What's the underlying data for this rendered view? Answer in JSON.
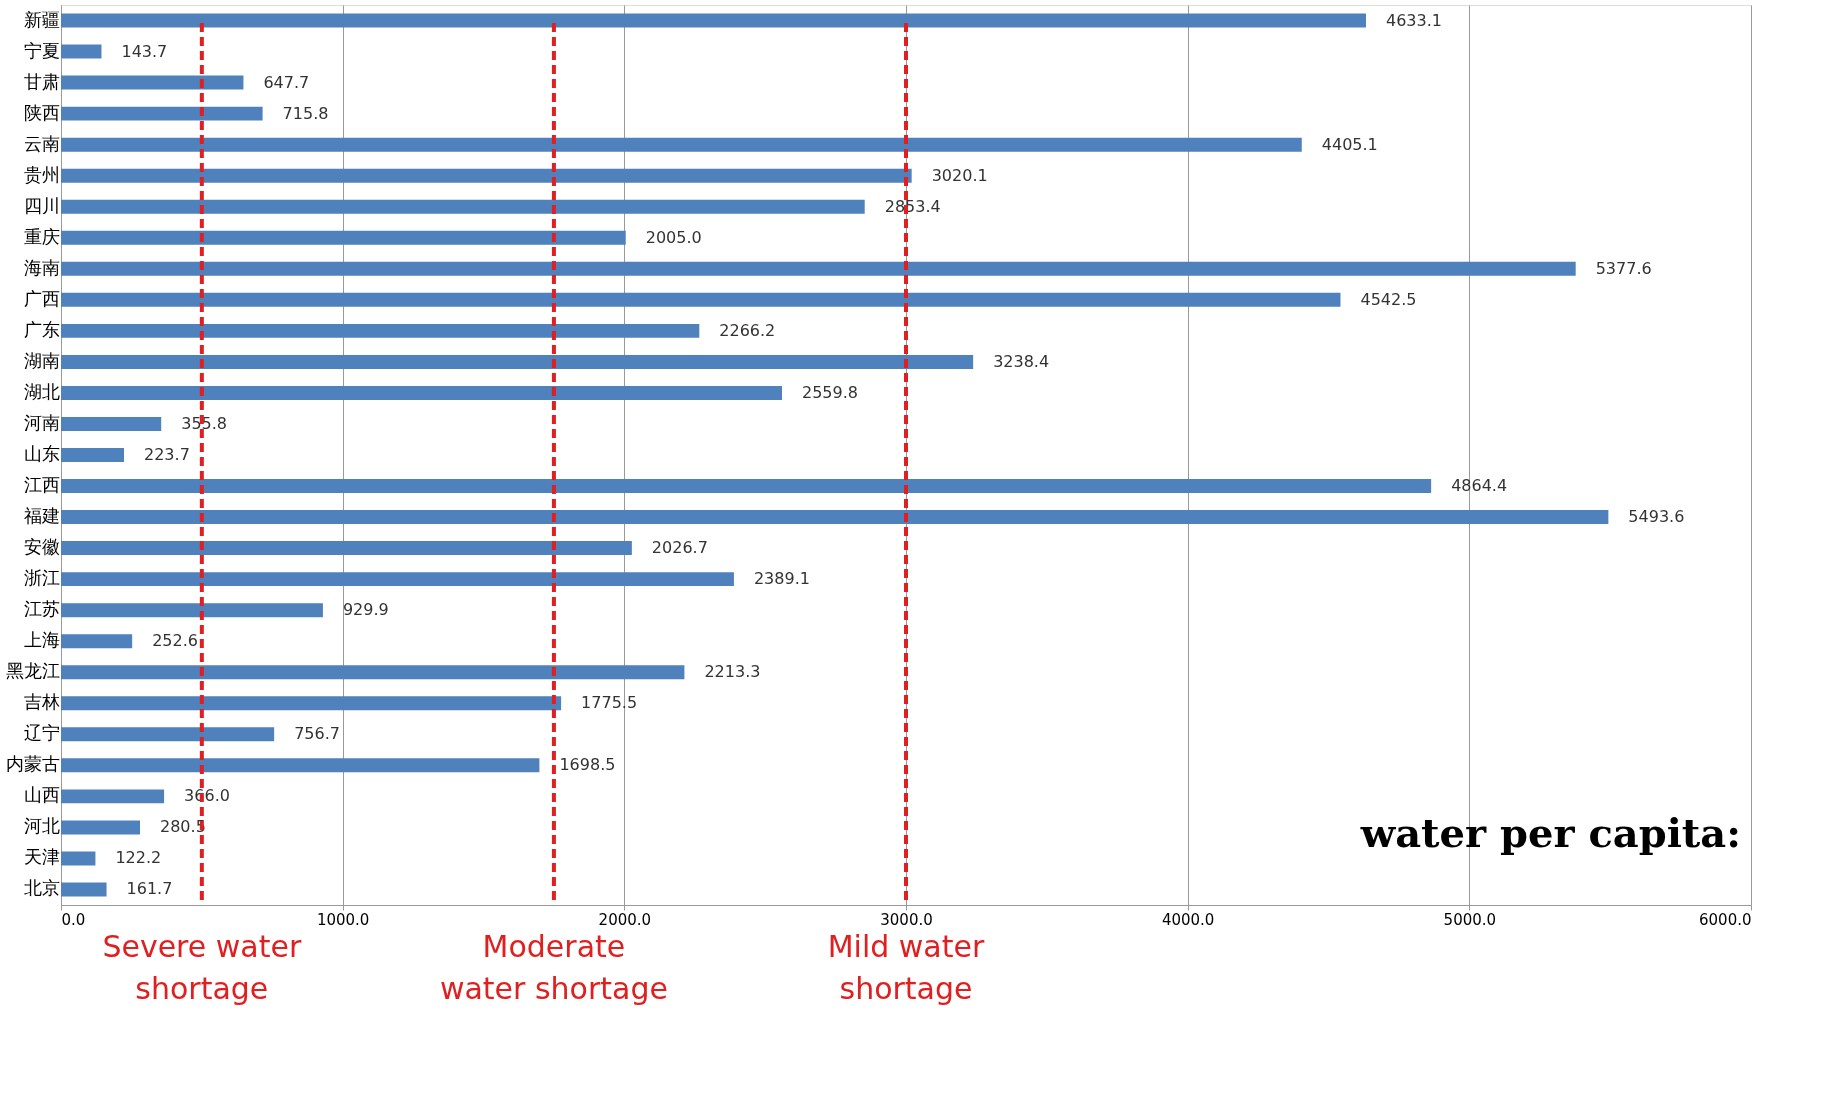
{
  "chart_data": {
    "type": "bar",
    "orientation": "horizontal",
    "categories": [
      "新疆",
      "宁夏",
      "甘肃",
      "陕西",
      "云南",
      "贵州",
      "四川",
      "重庆",
      "海南",
      "广西",
      "广东",
      "湖南",
      "湖北",
      "河南",
      "山东",
      "江西",
      "福建",
      "安徽",
      "浙江",
      "江苏",
      "上海",
      "黑龙江",
      "吉林",
      "辽宁",
      "内蒙古",
      "山西",
      "河北",
      "天津",
      "北京"
    ],
    "values": [
      4633.1,
      143.7,
      647.7,
      715.8,
      4405.1,
      3020.1,
      2853.4,
      2005.0,
      5377.6,
      4542.5,
      2266.2,
      3238.4,
      2559.8,
      355.8,
      223.7,
      4864.4,
      5493.6,
      2026.7,
      2389.1,
      929.9,
      252.6,
      2213.3,
      1775.5,
      756.7,
      1698.5,
      366.0,
      280.5,
      122.2,
      161.7
    ],
    "value_labels": [
      "4633.1",
      "143.7",
      "647.7",
      "715.8",
      "4405.1",
      "3020.1",
      "2853.4",
      "2005.0",
      "5377.6",
      "4542.5",
      "2266.2",
      "3238.4",
      "2559.8",
      "355.8",
      "223.7",
      "4864.4",
      "5493.6",
      "2026.7",
      "2389.1",
      "929.9",
      "252.6",
      "2213.3",
      "1775.5",
      "756.7",
      "1698.5",
      "366.0",
      "280.5",
      "122.2",
      "161.7"
    ],
    "color": "#4f81bd",
    "xlim": [
      0,
      6000
    ],
    "xticks": [
      {
        "value": 0,
        "label": "0.0"
      },
      {
        "value": 1000,
        "label": "1000.0"
      },
      {
        "value": 2000,
        "label": "2000.0"
      },
      {
        "value": 3000,
        "label": "3000.0"
      },
      {
        "value": 4000,
        "label": "4000.0"
      },
      {
        "value": 5000,
        "label": "5000.0"
      },
      {
        "value": 6000,
        "label": "6000.0"
      }
    ],
    "grid": "x",
    "ref_lines": [
      {
        "axis": "x",
        "value": 500,
        "label": "Severe water\nshortage",
        "color": "#e02020",
        "line_style": "dashed"
      },
      {
        "axis": "x",
        "value": 1750,
        "label": "Moderate\nwater shortage",
        "color": "#e02020",
        "line_style": "dashed"
      },
      {
        "axis": "x",
        "value": 3000,
        "label": "Mild water\nshortage",
        "color": "#e02020",
        "line_style": "dashed"
      }
    ],
    "annotations": [
      "water per capita:"
    ]
  }
}
